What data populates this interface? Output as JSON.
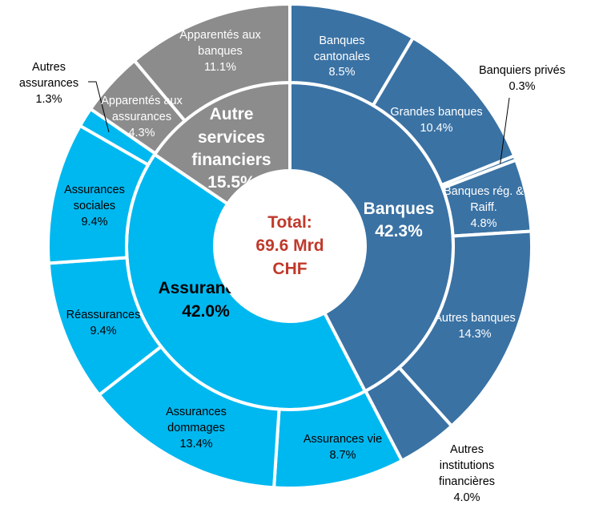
{
  "chart_data": {
    "type": "donut",
    "center_label": {
      "line1": "Total:",
      "line2": "69.6 Mrd",
      "line3": "CHF",
      "color": "#c0392b"
    },
    "inner_ring": [
      {
        "name": "Banques",
        "value": 42.3,
        "display": "42.3%",
        "color": "#3a72a4",
        "text_color": "#ffffff"
      },
      {
        "name": "Assurances",
        "value": 42.0,
        "display": "42.0%",
        "color": "#00b8f0",
        "text_color": "#000000"
      },
      {
        "name": "Autre services financiers",
        "name_lines": [
          "Autre",
          "services",
          "financiers"
        ],
        "value": 15.5,
        "display": "15.5%",
        "color": "#8c8c8c",
        "text_color": "#ffffff"
      }
    ],
    "outer_ring": [
      {
        "name": "Banques cantonales",
        "lines": [
          "Banques",
          "cantonales"
        ],
        "value": 8.5,
        "display": "8.5%",
        "color": "#3a72a4",
        "text_color": "#ffffff"
      },
      {
        "name": "Grandes banques",
        "lines": [
          "Grandes banques"
        ],
        "value": 10.4,
        "display": "10.4%",
        "color": "#3a72a4",
        "text_color": "#ffffff"
      },
      {
        "name": "Banquiers privés",
        "lines": [
          "Banquiers privés"
        ],
        "value": 0.3,
        "display": "0.3%",
        "color": "#3a72a4",
        "text_color": "#000000",
        "external": true
      },
      {
        "name": "Banques rég. Raiff.",
        "lines": [
          "Banques rég. &",
          "Raiff."
        ],
        "value": 4.8,
        "display": "4.8%",
        "color": "#3a72a4",
        "text_color": "#ffffff"
      },
      {
        "name": "Autres banques",
        "lines": [
          "Autres banques"
        ],
        "value": 14.3,
        "display": "14.3%",
        "color": "#3a72a4",
        "text_color": "#ffffff"
      },
      {
        "name": "Autres institutions financières",
        "lines": [
          "Autres",
          "institutions",
          "financières"
        ],
        "value": 4.0,
        "display": "4.0%",
        "color": "#3a72a4",
        "text_color": "#000000",
        "external": true
      },
      {
        "name": "Assurances vie",
        "lines": [
          "Assurances vie"
        ],
        "value": 8.7,
        "display": "8.7%",
        "color": "#00b8f0",
        "text_color": "#000000"
      },
      {
        "name": "Assurances dommages",
        "lines": [
          "Assurances",
          "dommages"
        ],
        "value": 13.4,
        "display": "13.4%",
        "color": "#00b8f0",
        "text_color": "#000000"
      },
      {
        "name": "Réassurances",
        "lines": [
          "Réassurances"
        ],
        "value": 9.4,
        "display": "9.4%",
        "color": "#00b8f0",
        "text_color": "#000000"
      },
      {
        "name": "Assurances sociales",
        "lines": [
          "Assurances",
          "sociales"
        ],
        "value": 9.4,
        "display": "9.4%",
        "color": "#00b8f0",
        "text_color": "#000000"
      },
      {
        "name": "Autres assurances",
        "lines": [
          "Autres",
          "assurances"
        ],
        "value": 1.3,
        "display": "1.3%",
        "color": "#00b8f0",
        "text_color": "#000000",
        "external": true
      },
      {
        "name": "Apparentés aux assurances",
        "lines": [
          "Apparentés aux",
          "assurances"
        ],
        "value": 4.3,
        "display": "4.3%",
        "color": "#8c8c8c",
        "text_color": "#ffffff"
      },
      {
        "name": "Apparentés aux banques",
        "lines": [
          "Apparentés aux",
          "banques"
        ],
        "value": 11.1,
        "display": "11.1%",
        "color": "#8c8c8c",
        "text_color": "#ffffff"
      }
    ]
  }
}
